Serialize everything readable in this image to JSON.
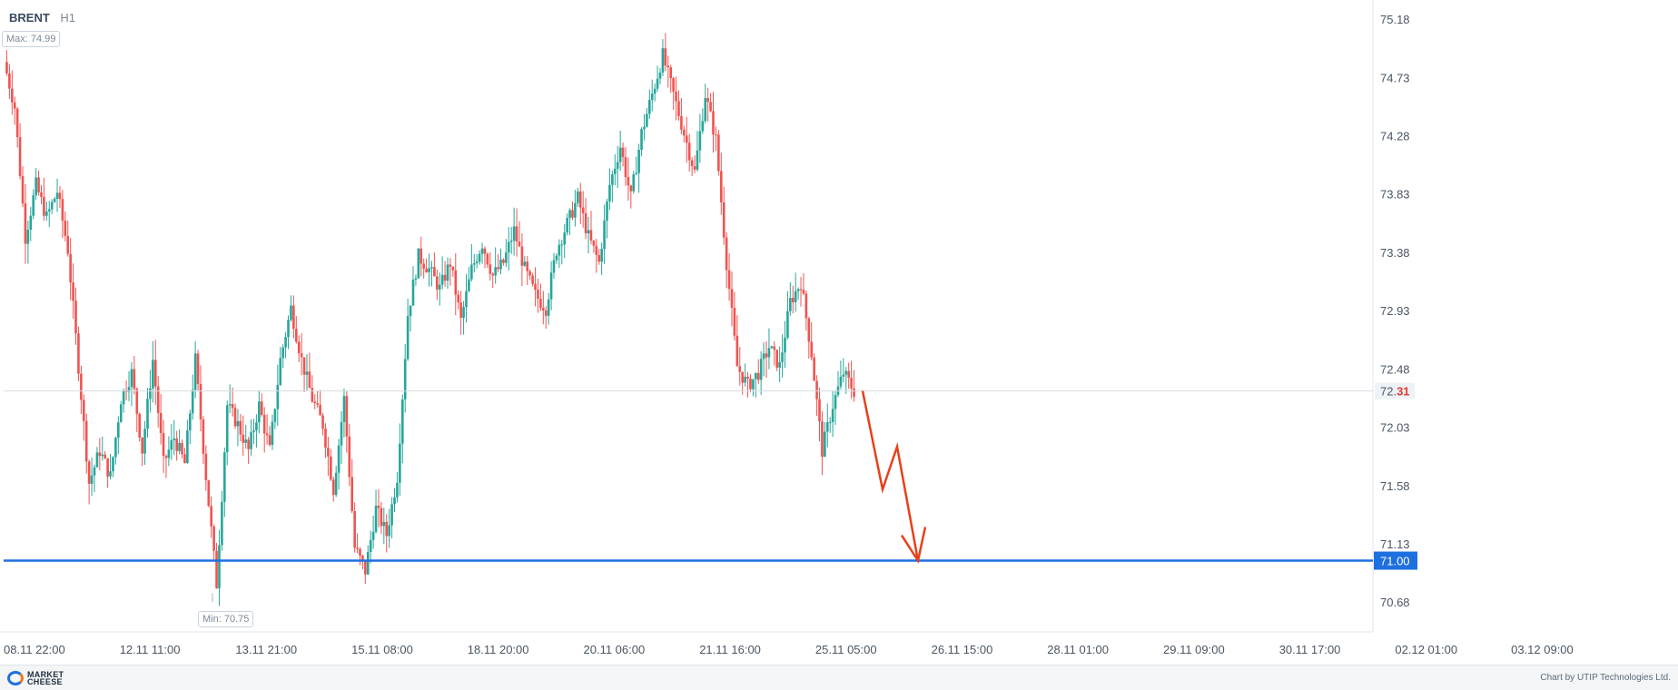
{
  "header": {
    "symbol": "BRENT",
    "timeframe": "H1"
  },
  "markers": {
    "max_label": "Max: 74.99",
    "min_label": "Min: 70.75"
  },
  "footer": {
    "logo_line1": "MARKET",
    "logo_line2": "CHEESE",
    "credit": "Chart by UTIP Technologies Ltd."
  },
  "chart_data": {
    "type": "candlestick",
    "instrument": "BRENT",
    "timeframe": "H1",
    "ylim": [
      70.45,
      75.3
    ],
    "y_ticks": [
      "75.18",
      "74.73",
      "74.28",
      "73.83",
      "73.38",
      "72.93",
      "72.48",
      "72.03",
      "71.58",
      "71.13",
      "70.68"
    ],
    "x_ticks": [
      "08.11 22:00",
      "12.11 11:00",
      "13.11 21:00",
      "15.11 08:00",
      "18.11 20:00",
      "20.11 06:00",
      "21.11 16:00",
      "25.11 05:00",
      "26.11 15:00",
      "28.11 01:00",
      "29.11 09:00",
      "30.11 17:00",
      "02.12 01:00",
      "03.12 09:00"
    ],
    "current_price": {
      "value": 72.31,
      "label_main": "72.",
      "label_tail": "31"
    },
    "support_level": {
      "value": 71.0,
      "label": "71.00",
      "color": "#1e6fe0"
    },
    "max": 74.99,
    "min": 70.75,
    "colors": {
      "up": "#26a69a",
      "down": "#ef5350",
      "forecast": "#e8401c",
      "grid_line": "#d5dbe1"
    },
    "price_path": [
      74.85,
      74.5,
      73.5,
      73.9,
      73.65,
      73.85,
      73.4,
      72.5,
      71.6,
      71.85,
      71.65,
      72.25,
      72.45,
      71.85,
      72.55,
      71.75,
      71.95,
      71.75,
      72.55,
      71.65,
      70.82,
      72.2,
      72.05,
      71.85,
      72.2,
      71.85,
      72.55,
      72.95,
      72.55,
      72.25,
      72.05,
      71.55,
      72.25,
      71.1,
      70.92,
      71.4,
      71.2,
      71.65,
      72.9,
      73.35,
      73.25,
      73.1,
      73.3,
      72.85,
      73.25,
      73.45,
      73.2,
      73.3,
      73.55,
      73.25,
      73.05,
      72.95,
      73.4,
      73.6,
      73.8,
      73.5,
      73.3,
      73.9,
      74.2,
      73.8,
      74.3,
      74.6,
      74.9,
      74.6,
      74.3,
      74.0,
      74.6,
      74.25,
      73.3,
      72.5,
      72.35,
      72.45,
      72.65,
      72.5,
      73.0,
      73.15,
      72.6,
      71.85,
      72.2,
      72.45,
      72.31
    ],
    "forecast_path": [
      72.31,
      71.55,
      71.88,
      71.0
    ]
  }
}
